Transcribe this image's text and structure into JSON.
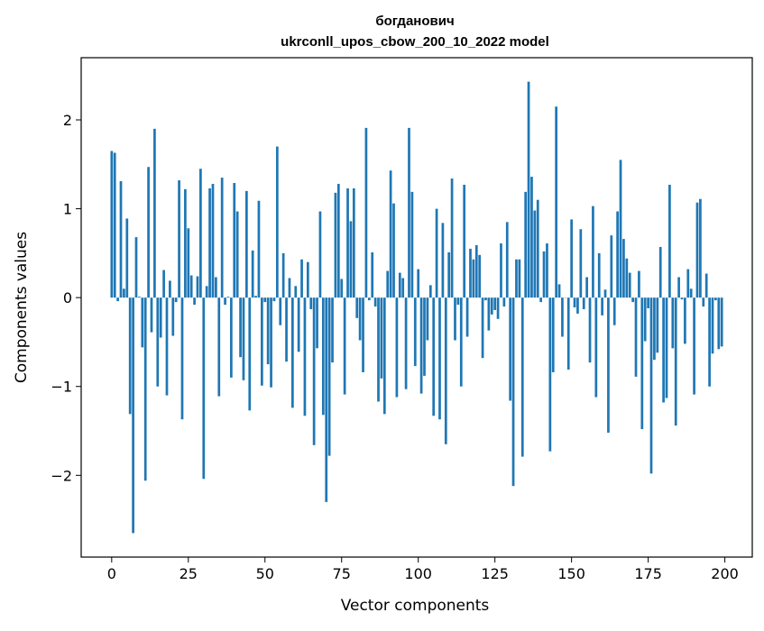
{
  "chart_data": {
    "type": "bar",
    "title_line1": "богданович",
    "title_line2": "ukrconll_upos_cbow_200_10_2022 model",
    "xlabel": "Vector components",
    "ylabel": "Components values",
    "xlim": [
      -9.95,
      208.95
    ],
    "ylim": [
      -2.92,
      2.7
    ],
    "x_ticks": [
      0,
      25,
      50,
      75,
      100,
      125,
      150,
      175,
      200
    ],
    "y_ticks": [
      -2,
      -1,
      0,
      1,
      2
    ],
    "grid": false,
    "legend": "none",
    "bar_color": "#1f77b4",
    "values": [
      1.65,
      1.63,
      -0.04,
      1.31,
      0.1,
      0.89,
      -1.31,
      -2.65,
      0.68,
      0.01,
      -0.56,
      -2.06,
      1.47,
      -0.39,
      1.9,
      -1.0,
      -0.45,
      0.31,
      -1.1,
      0.19,
      -0.43,
      -0.05,
      1.32,
      -1.37,
      1.22,
      0.78,
      0.25,
      -0.08,
      0.24,
      1.45,
      -2.04,
      0.13,
      1.23,
      1.28,
      0.23,
      -1.11,
      1.35,
      -0.08,
      0.01,
      -0.9,
      1.29,
      0.97,
      -0.67,
      -0.93,
      1.2,
      -1.27,
      0.53,
      0.02,
      1.09,
      -0.99,
      -0.05,
      -0.75,
      -1.01,
      -0.04,
      1.7,
      -0.31,
      0.5,
      -0.72,
      0.22,
      -1.24,
      0.13,
      -0.61,
      0.43,
      -1.33,
      0.4,
      -0.13,
      -1.66,
      -0.57,
      0.97,
      -1.32,
      -2.3,
      -1.78,
      -0.73,
      1.18,
      1.28,
      0.21,
      -1.09,
      1.23,
      0.86,
      1.23,
      -0.23,
      -0.48,
      -0.84,
      1.91,
      -0.03,
      0.51,
      -0.1,
      -1.17,
      -0.91,
      -1.31,
      0.3,
      1.43,
      1.06,
      -1.12,
      0.28,
      0.22,
      -1.03,
      1.91,
      1.19,
      -0.77,
      0.32,
      -1.08,
      -0.88,
      -0.48,
      0.14,
      -1.33,
      1.0,
      -1.37,
      0.84,
      -1.65,
      0.51,
      1.34,
      -0.48,
      -0.08,
      -1.0,
      1.27,
      -0.44,
      0.55,
      0.43,
      0.59,
      0.48,
      -0.68,
      -0.03,
      -0.37,
      -0.19,
      -0.14,
      -0.24,
      0.61,
      -0.1,
      0.85,
      -1.16,
      -2.12,
      0.43,
      0.43,
      -1.79,
      1.19,
      2.43,
      1.36,
      0.98,
      1.1,
      -0.05,
      0.52,
      0.61,
      -1.73,
      -0.84,
      2.15,
      0.15,
      -0.44,
      0.0,
      -0.81,
      0.88,
      -0.11,
      -0.18,
      0.77,
      -0.13,
      0.23,
      -0.73,
      1.03,
      -1.12,
      0.5,
      -0.2,
      0.09,
      -1.52,
      0.7,
      -0.31,
      0.97,
      1.55,
      0.66,
      0.44,
      0.28,
      -0.05,
      -0.89,
      0.3,
      -1.48,
      -0.49,
      -0.12,
      -1.98,
      -0.7,
      -0.62,
      0.57,
      -1.18,
      -1.13,
      1.27,
      -0.57,
      -1.44,
      0.23,
      -0.02,
      -0.52,
      0.32,
      0.1,
      -1.09,
      1.07,
      1.11,
      -0.1,
      0.27,
      -1.0,
      -0.63,
      -0.03,
      -0.58,
      -0.55
    ]
  }
}
